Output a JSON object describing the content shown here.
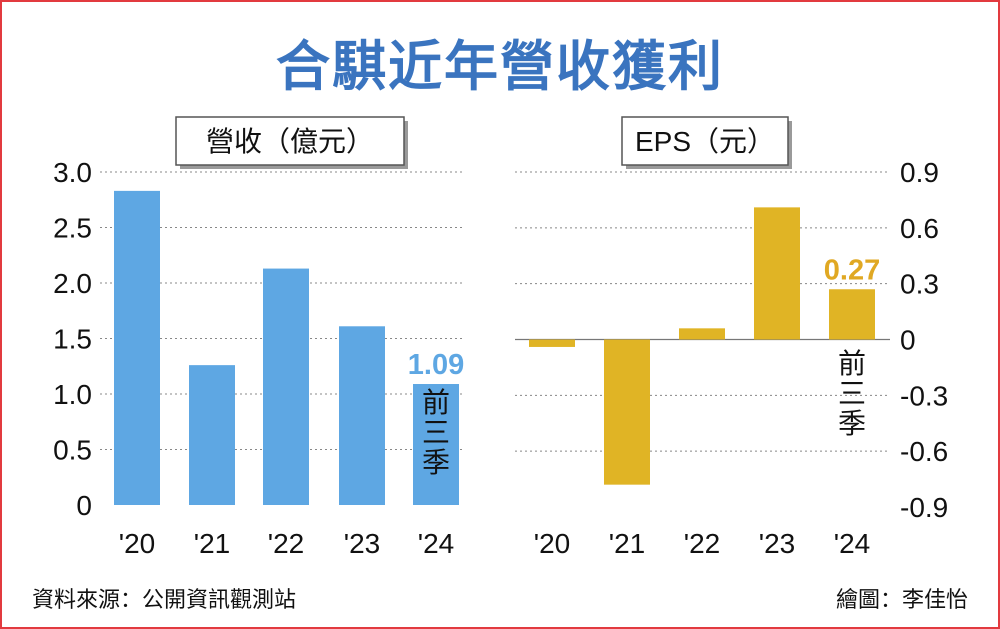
{
  "title": "合騏近年營收獲利",
  "footer": {
    "source": "資料來源：公開資訊觀測站",
    "credit": "繪圖：李佳怡"
  },
  "colors": {
    "revenue_bar": "#5ea7e3",
    "eps_bar": "#e0b425",
    "revenue_label": "#5ea7e3",
    "eps_label": "#e0a823",
    "title": "#3a74bf",
    "border": "#e23a3f"
  },
  "chart_data": [
    {
      "type": "bar",
      "title": "營收（億元）",
      "categories": [
        "'20",
        "'21",
        "'22",
        "'23",
        "'24"
      ],
      "values": [
        2.83,
        1.26,
        2.13,
        1.61,
        1.09
      ],
      "yticks": [
        "0",
        "0.5",
        "1.0",
        "1.5",
        "2.0",
        "2.5",
        "3.0"
      ],
      "ylim": [
        0,
        3.0
      ],
      "value_label": "1.09",
      "note": "前三季",
      "grid": true
    },
    {
      "type": "bar",
      "title": "EPS（元）",
      "categories": [
        "'20",
        "'21",
        "'22",
        "'23",
        "'24"
      ],
      "values": [
        -0.04,
        -0.78,
        0.06,
        0.71,
        0.27
      ],
      "yticks": [
        "0.9",
        "0.6",
        "0.3",
        "0",
        "-0.3",
        "-0.6",
        "-0.9"
      ],
      "ylim": [
        -0.9,
        0.9
      ],
      "value_label": "0.27",
      "note": "前三季",
      "grid": true
    }
  ]
}
